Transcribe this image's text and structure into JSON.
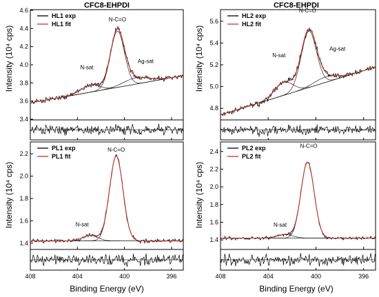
{
  "figure": {
    "col_titles": [
      "CFC8-EHPDI",
      "CFC8-EHPDI"
    ],
    "xlabel": "Binding Energy (eV)",
    "ylabel": "Intensity (10⁴ cps)",
    "colors": {
      "exp": "#000000",
      "fit": "#c0392b",
      "component": "#000000",
      "frame": "#000000"
    }
  },
  "chart_data": [
    {
      "type": "line",
      "panel": "HL1",
      "legend": [
        "HL1 exp",
        "HL1 fit"
      ],
      "annotations": [
        {
          "text": "N-C=O",
          "x": 400.6,
          "y": 4.48
        },
        {
          "text": "N-sat",
          "x": 403.2,
          "y": 3.95
        },
        {
          "text": "Ag-sat",
          "x": 398.2,
          "y": 4.02
        }
      ],
      "xlim": [
        408,
        395
      ],
      "ylim": [
        3.4,
        4.6
      ],
      "xticks": [
        408,
        404,
        400,
        396
      ],
      "xtick_labels": [
        "408",
        "404",
        "400",
        "396"
      ],
      "yticks": [
        3.4,
        3.6,
        3.8,
        4.0,
        4.2,
        4.4,
        4.6
      ],
      "ytick_labels": [
        "3.4",
        "3.6",
        "3.8",
        "4.0",
        "4.2",
        "4.4",
        "4.6"
      ],
      "background": [
        [
          408,
          3.58
        ],
        [
          395,
          3.88
        ]
      ],
      "peaks": [
        {
          "name": "N-C=O",
          "center": 400.6,
          "height": 0.62,
          "fwhm": 1.4
        },
        {
          "name": "N-sat",
          "center": 402.9,
          "height": 0.08,
          "fwhm": 1.8
        },
        {
          "name": "Ag-sat",
          "center": 399.0,
          "height": 0.07,
          "fwhm": 2.5
        }
      ],
      "noise_amplitude": 0.02
    },
    {
      "type": "line",
      "panel": "HL2",
      "legend": [
        "HL2 exp",
        "HL2 fit"
      ],
      "annotations": [
        {
          "text": "N-C=O",
          "x": 400.7,
          "y": 5.68
        },
        {
          "text": "N-sat",
          "x": 403.1,
          "y": 5.27
        },
        {
          "text": "Ag-sat",
          "x": 398.2,
          "y": 5.33
        }
      ],
      "xlim": [
        408,
        395
      ],
      "ylim": [
        4.7,
        5.7
      ],
      "xticks": [
        408,
        404,
        400,
        396
      ],
      "xtick_labels": [
        "408",
        "404",
        "400",
        "396"
      ],
      "yticks": [
        4.8,
        5.0,
        5.2,
        5.4,
        5.6
      ],
      "ytick_labels": [
        "4.8",
        "5.0",
        "5.2",
        "5.4",
        "5.6"
      ],
      "background": [
        [
          408,
          4.74
        ],
        [
          395,
          5.18
        ]
      ],
      "peaks": [
        {
          "name": "N-C=O",
          "center": 400.6,
          "height": 0.52,
          "fwhm": 1.5
        },
        {
          "name": "N-sat",
          "center": 402.7,
          "height": 0.12,
          "fwhm": 1.8
        },
        {
          "name": "Ag-sat",
          "center": 399.2,
          "height": 0.05,
          "fwhm": 2.2
        }
      ],
      "noise_amplitude": 0.02
    },
    {
      "type": "line",
      "panel": "PL1",
      "legend": [
        "PL1 exp",
        "PL1 fit"
      ],
      "annotations": [
        {
          "text": "N-C=O",
          "x": 400.7,
          "y": 2.22
        },
        {
          "text": "N-sat",
          "x": 403.6,
          "y": 1.55
        }
      ],
      "xlim": [
        408,
        395
      ],
      "ylim": [
        1.35,
        2.3
      ],
      "xticks": [
        408,
        404,
        400,
        396
      ],
      "xtick_labels": [
        "408",
        "404",
        "400",
        "396"
      ],
      "yticks": [
        1.4,
        1.6,
        1.8,
        2.0,
        2.2
      ],
      "ytick_labels": [
        "1.4",
        "1.6",
        "1.8",
        "2.0",
        "2.2"
      ],
      "background": [
        [
          408,
          1.42
        ],
        [
          395,
          1.42
        ]
      ],
      "peaks": [
        {
          "name": "N-C=O",
          "center": 400.7,
          "height": 0.76,
          "fwhm": 1.35
        },
        {
          "name": "N-sat",
          "center": 402.9,
          "height": 0.05,
          "fwhm": 1.5
        }
      ],
      "noise_amplitude": 0.012
    },
    {
      "type": "line",
      "panel": "PL2",
      "legend": [
        "PL2 exp",
        "PL2 fit"
      ],
      "annotations": [
        {
          "text": "N-C=O",
          "x": 400.6,
          "y": 2.44
        },
        {
          "text": "N-sat",
          "x": 403.0,
          "y": 1.55
        }
      ],
      "xlim": [
        408,
        395
      ],
      "ylim": [
        1.3,
        2.5
      ],
      "xticks": [
        408,
        404,
        400,
        396
      ],
      "xtick_labels": [
        "408",
        "404",
        "400",
        "396"
      ],
      "yticks": [
        1.4,
        1.6,
        1.8,
        2.0,
        2.2,
        2.4
      ],
      "ytick_labels": [
        "1.4",
        "1.6",
        "1.8",
        "2.0",
        "2.2",
        "2.4"
      ],
      "background": [
        [
          408,
          1.42
        ],
        [
          395,
          1.42
        ]
      ],
      "peaks": [
        {
          "name": "N-C=O",
          "center": 400.7,
          "height": 0.86,
          "fwhm": 1.3
        },
        {
          "name": "N-sat",
          "center": 402.6,
          "height": 0.04,
          "fwhm": 1.6
        }
      ],
      "noise_amplitude": 0.012
    }
  ]
}
